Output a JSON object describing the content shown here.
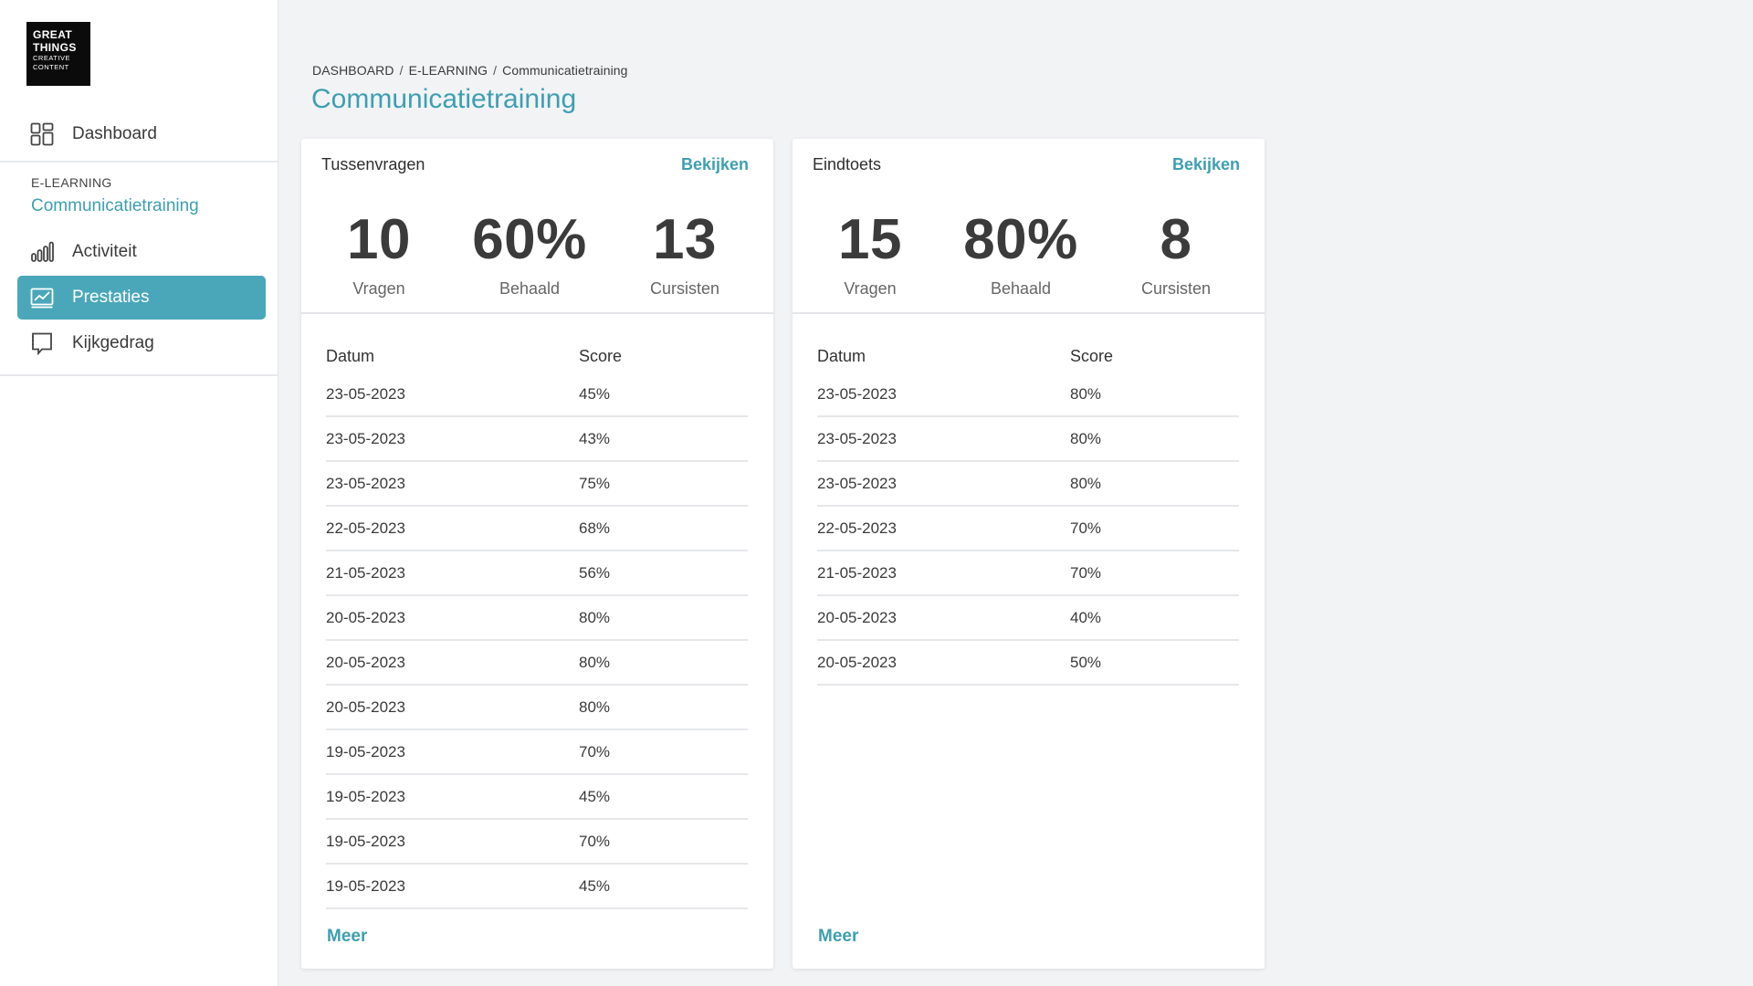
{
  "brand": {
    "logo_line1": "GREAT",
    "logo_line2": "THINGS",
    "logo_line3": "CREATIVE",
    "logo_line4": "CONTENT",
    "accent_color": "#3d9fb1"
  },
  "sidebar": {
    "dashboard_label": "Dashboard",
    "section_kicker": "E-LEARNING",
    "section_title": "Communicatietraining",
    "items": [
      {
        "label": "Activiteit",
        "icon": "bar-chart-icon",
        "active": false
      },
      {
        "label": "Prestaties",
        "icon": "line-chart-icon",
        "active": true
      },
      {
        "label": "Kijkgedrag",
        "icon": "message-square-icon",
        "active": false
      }
    ]
  },
  "breadcrumb": [
    "DASHBOARD",
    "E-LEARNING",
    "Communicatietraining"
  ],
  "page_title": "Communicatietraining",
  "cards": [
    {
      "title": "Tussenvragen",
      "link": "Bekijken",
      "stats": [
        {
          "value": "10",
          "caption": "Vragen"
        },
        {
          "value": "60%",
          "caption": "Behaald"
        },
        {
          "value": "13",
          "caption": "Cursisten"
        }
      ],
      "columns": [
        "Datum",
        "Score"
      ],
      "rows": [
        [
          "23-05-2023",
          "45%"
        ],
        [
          "23-05-2023",
          "43%"
        ],
        [
          "23-05-2023",
          "75%"
        ],
        [
          "22-05-2023",
          "68%"
        ],
        [
          "21-05-2023",
          "56%"
        ],
        [
          "20-05-2023",
          "80%"
        ],
        [
          "20-05-2023",
          "80%"
        ],
        [
          "20-05-2023",
          "80%"
        ],
        [
          "19-05-2023",
          "70%"
        ],
        [
          "19-05-2023",
          "45%"
        ],
        [
          "19-05-2023",
          "70%"
        ],
        [
          "19-05-2023",
          "45%"
        ]
      ],
      "more": "Meer"
    },
    {
      "title": "Eindtoets",
      "link": "Bekijken",
      "stats": [
        {
          "value": "15",
          "caption": "Vragen"
        },
        {
          "value": "80%",
          "caption": "Behaald"
        },
        {
          "value": "8",
          "caption": "Cursisten"
        }
      ],
      "columns": [
        "Datum",
        "Score"
      ],
      "rows": [
        [
          "23-05-2023",
          "80%"
        ],
        [
          "23-05-2023",
          "80%"
        ],
        [
          "23-05-2023",
          "80%"
        ],
        [
          "22-05-2023",
          "70%"
        ],
        [
          "21-05-2023",
          "70%"
        ],
        [
          "20-05-2023",
          "40%"
        ],
        [
          "20-05-2023",
          "50%"
        ]
      ],
      "more": "Meer"
    }
  ]
}
